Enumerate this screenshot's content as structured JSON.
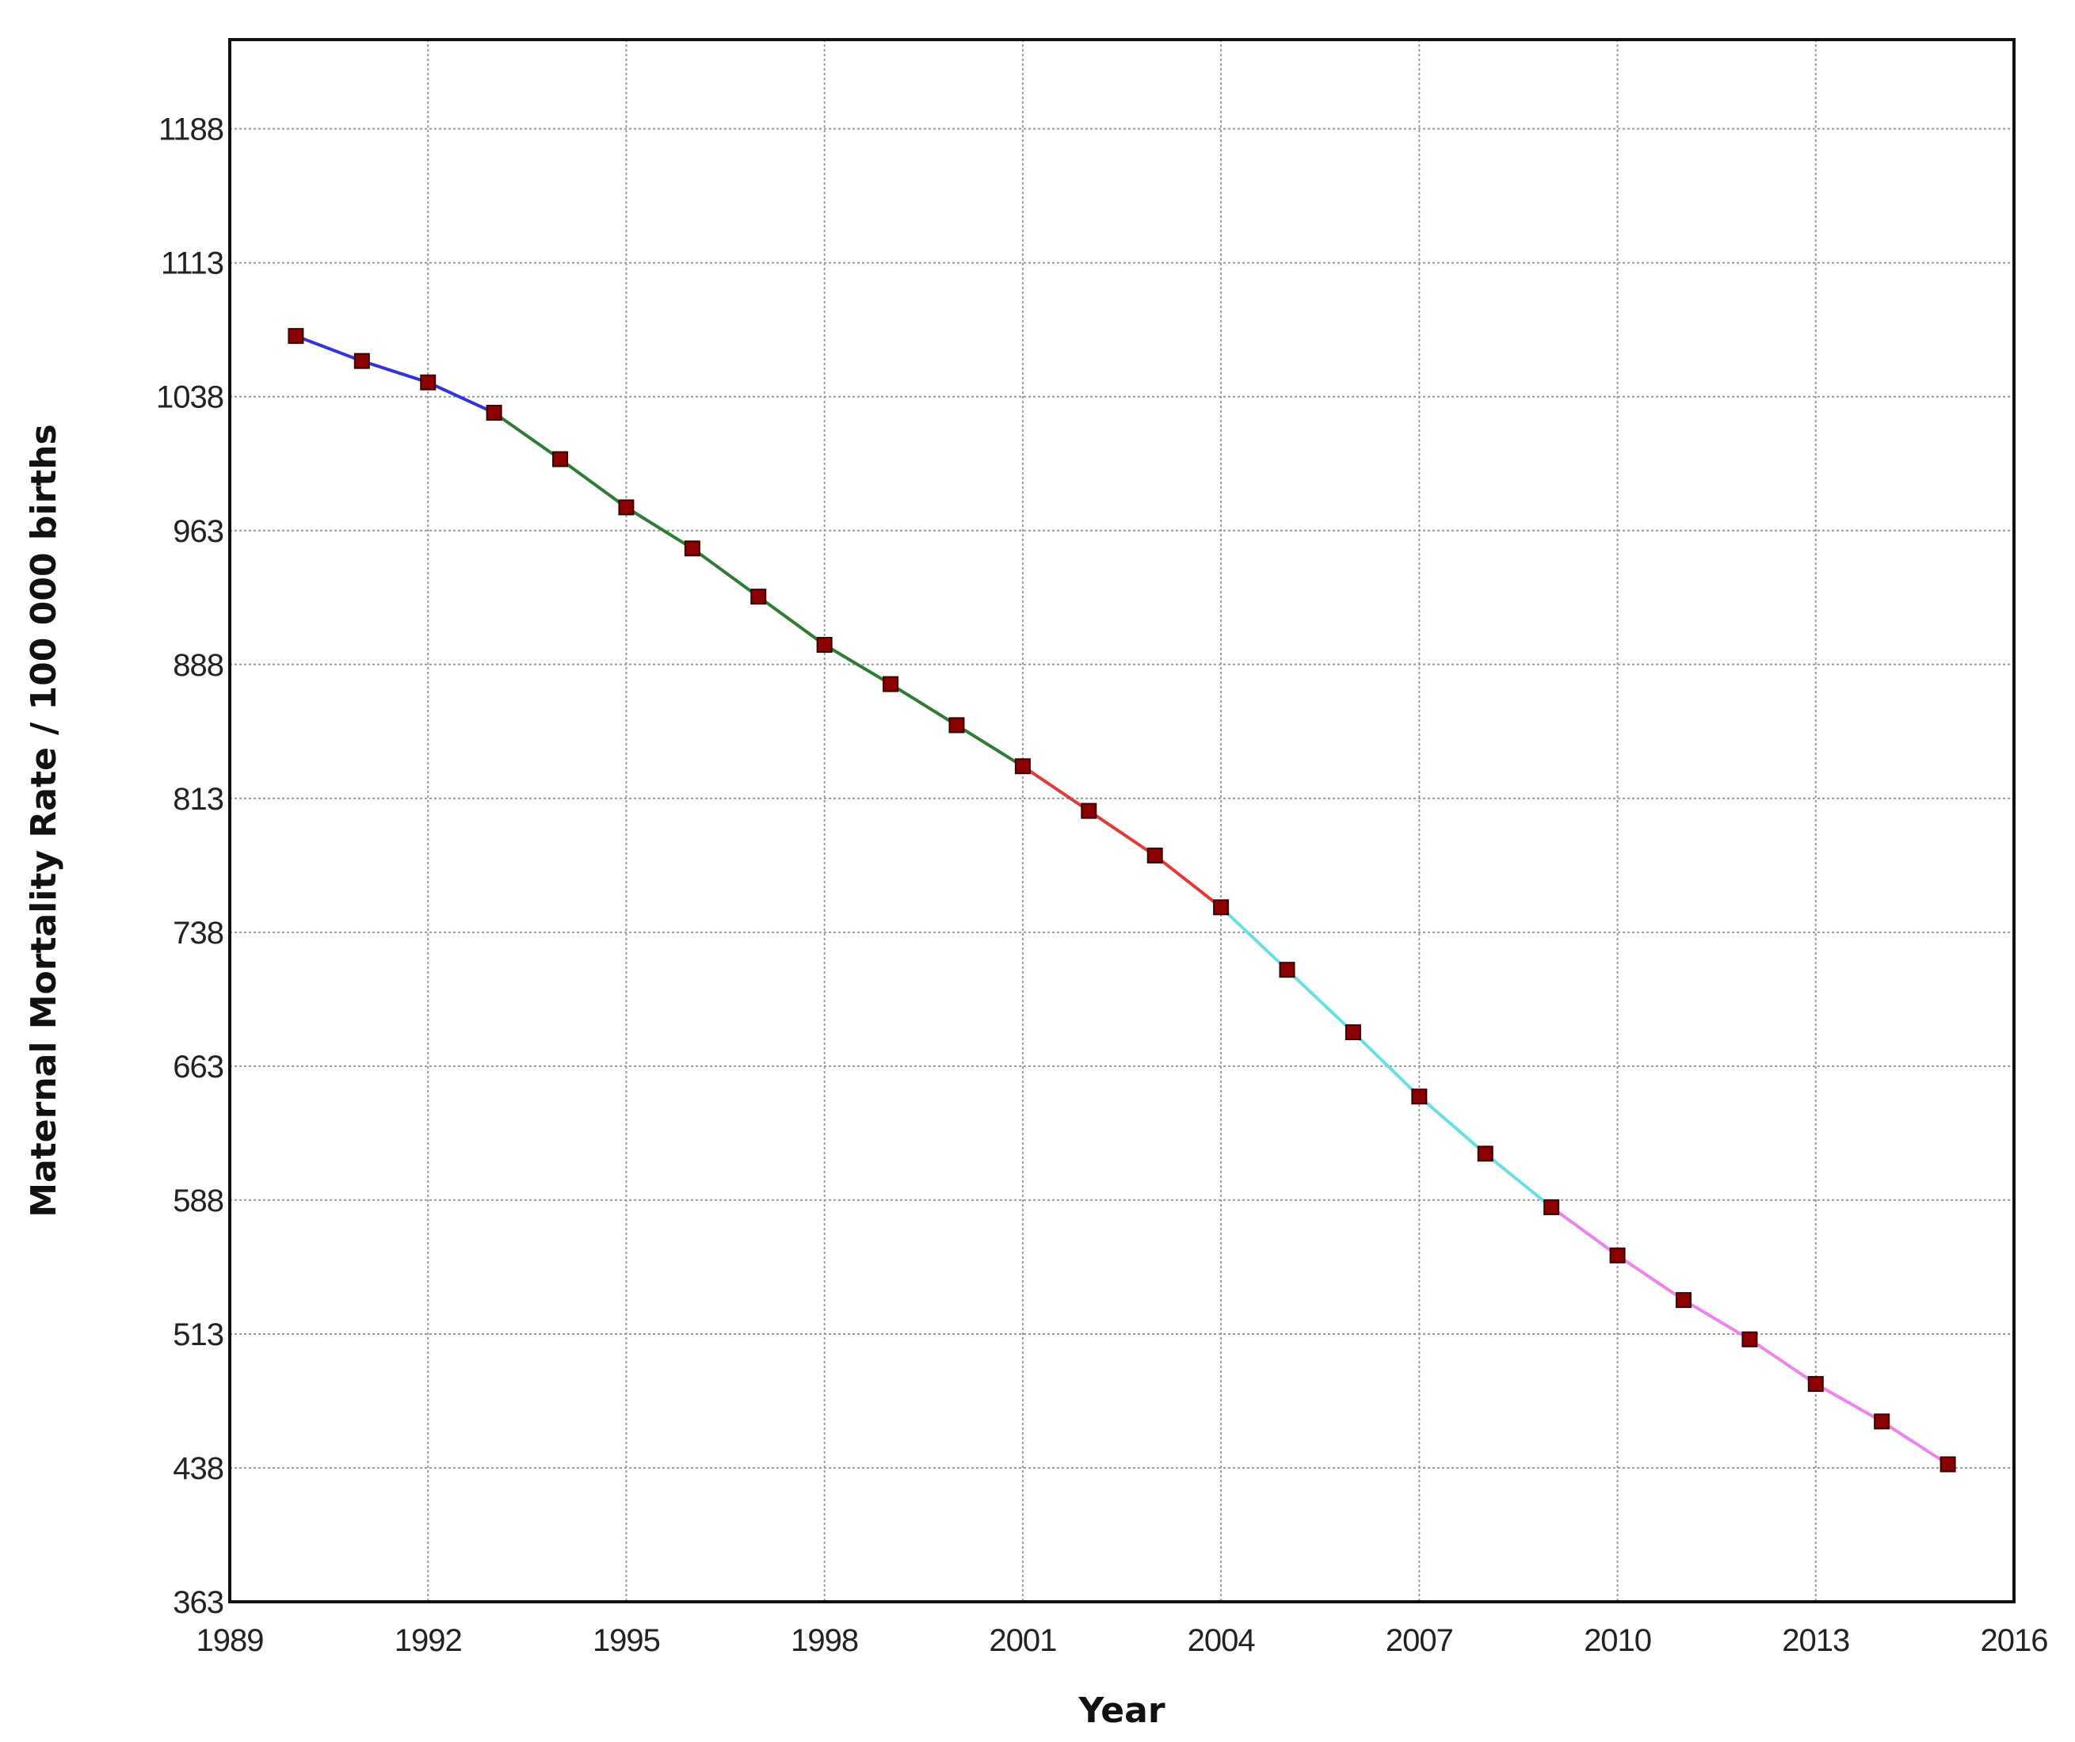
{
  "chart_data": {
    "type": "line",
    "title": "",
    "xlabel": "Year",
    "ylabel": "Maternal Mortality Rate / 100 000 births",
    "xlim": [
      1989,
      2016
    ],
    "ylim": [
      363,
      1238
    ],
    "x_ticks": [
      "1989",
      "1992",
      "1995",
      "1998",
      "2001",
      "2004",
      "2007",
      "2010",
      "2013",
      "2016"
    ],
    "y_ticks": [
      "363",
      "438",
      "513",
      "588",
      "663",
      "738",
      "813",
      "888",
      "963",
      "1038",
      "1113",
      "1188"
    ],
    "grid": true,
    "legend": "none",
    "marker_color": "#8b0000",
    "segments": [
      {
        "color": "#3333dd",
        "x": [
          1990,
          1991,
          1992,
          1993
        ],
        "y": [
          1072,
          1058,
          1046,
          1029
        ]
      },
      {
        "color": "#2e7d32",
        "x": [
          1993,
          1994,
          1995,
          1996,
          1997,
          1998,
          1999,
          2000,
          2001
        ],
        "y": [
          1029,
          1003,
          976,
          953,
          926,
          899,
          877,
          854,
          831
        ]
      },
      {
        "color": "#e53935",
        "x": [
          2001,
          2002,
          2003,
          2004
        ],
        "y": [
          831,
          806,
          781,
          752
        ]
      },
      {
        "color": "#66e0e0",
        "x": [
          2004,
          2005,
          2006,
          2007,
          2008,
          2009
        ],
        "y": [
          752,
          717,
          682,
          646,
          614,
          584
        ]
      },
      {
        "color": "#ee82ee",
        "x": [
          2009,
          2010,
          2011,
          2012,
          2013,
          2014,
          2015
        ],
        "y": [
          584,
          557,
          532,
          510,
          485,
          464,
          440
        ]
      }
    ]
  }
}
